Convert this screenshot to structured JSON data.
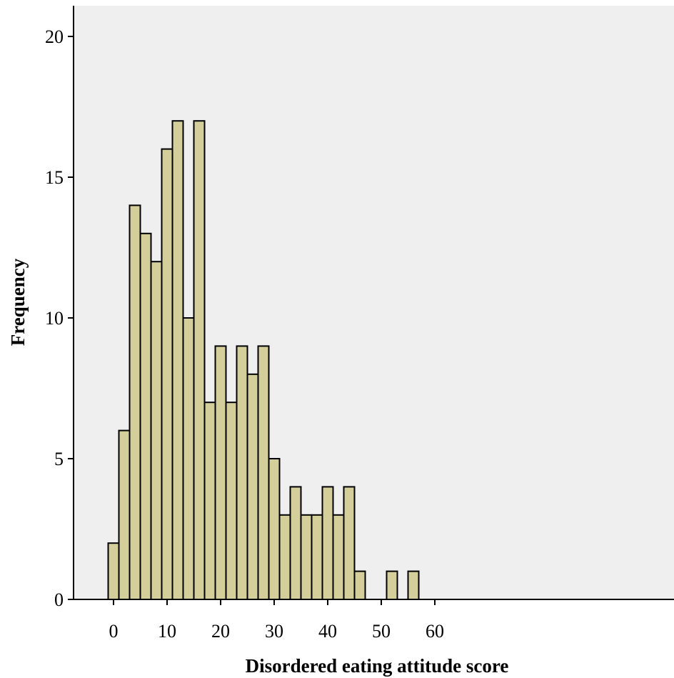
{
  "chart_data": {
    "type": "bar",
    "subtype": "histogram",
    "xlabel": "Disordered eating attitude score",
    "ylabel": "Frequency",
    "xlim": [
      -4,
      64
    ],
    "ylim": [
      0,
      21
    ],
    "xticks": [
      0,
      10,
      20,
      30,
      40,
      50,
      60
    ],
    "yticks": [
      0,
      5,
      10,
      15,
      20
    ],
    "bin_width": 2,
    "bins": [
      {
        "start": -1,
        "end": 1,
        "count": 2
      },
      {
        "start": 1,
        "end": 3,
        "count": 6
      },
      {
        "start": 3,
        "end": 5,
        "count": 14
      },
      {
        "start": 5,
        "end": 7,
        "count": 13
      },
      {
        "start": 7,
        "end": 9,
        "count": 12
      },
      {
        "start": 9,
        "end": 11,
        "count": 16
      },
      {
        "start": 11,
        "end": 13,
        "count": 17
      },
      {
        "start": 13,
        "end": 15,
        "count": 10
      },
      {
        "start": 15,
        "end": 17,
        "count": 17
      },
      {
        "start": 17,
        "end": 19,
        "count": 7
      },
      {
        "start": 19,
        "end": 21,
        "count": 9
      },
      {
        "start": 21,
        "end": 23,
        "count": 7
      },
      {
        "start": 23,
        "end": 25,
        "count": 9
      },
      {
        "start": 25,
        "end": 27,
        "count": 8
      },
      {
        "start": 27,
        "end": 29,
        "count": 9
      },
      {
        "start": 29,
        "end": 31,
        "count": 5
      },
      {
        "start": 31,
        "end": 33,
        "count": 3
      },
      {
        "start": 33,
        "end": 35,
        "count": 4
      },
      {
        "start": 35,
        "end": 37,
        "count": 3
      },
      {
        "start": 37,
        "end": 39,
        "count": 3
      },
      {
        "start": 39,
        "end": 41,
        "count": 4
      },
      {
        "start": 41,
        "end": 43,
        "count": 3
      },
      {
        "start": 43,
        "end": 45,
        "count": 4
      },
      {
        "start": 45,
        "end": 47,
        "count": 1
      },
      {
        "start": 51,
        "end": 53,
        "count": 1
      },
      {
        "start": 55,
        "end": 57,
        "count": 1
      }
    ],
    "colors": {
      "bar_fill": "#d3ce9a",
      "bar_edge": "#000000",
      "plot_background": "#efefef"
    },
    "grid": false,
    "legend": "none"
  }
}
